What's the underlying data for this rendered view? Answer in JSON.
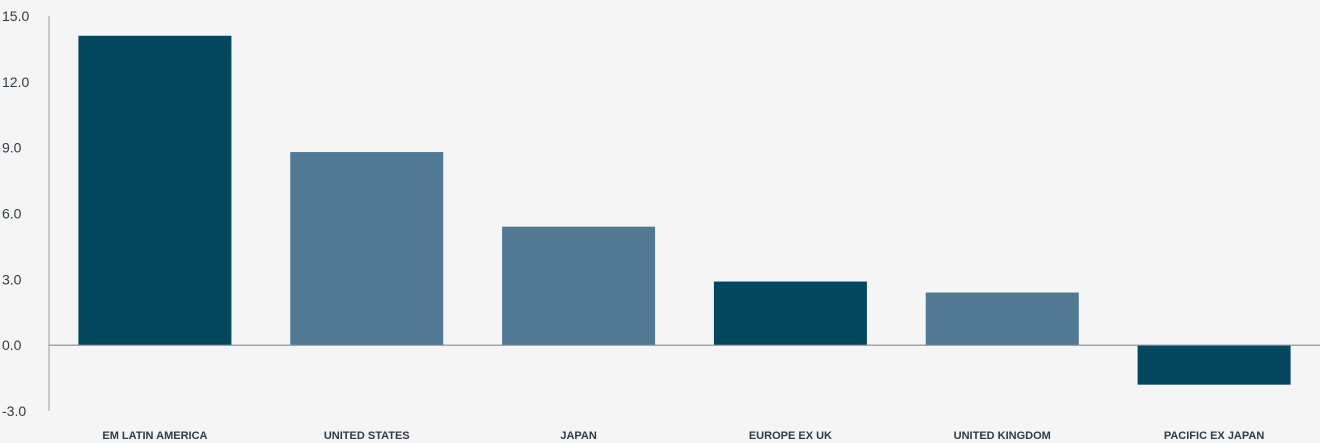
{
  "chart_data": {
    "type": "bar",
    "categories": [
      "EM LATIN AMERICA",
      "UNITED STATES",
      "JAPAN",
      "EUROPE EX UK",
      "UNITED KINGDOM",
      "PACIFIC EX JAPAN"
    ],
    "values": [
      14.1,
      8.8,
      5.4,
      2.9,
      2.4,
      -1.8
    ],
    "yticks": [
      "15.0",
      "12.0",
      "9.0",
      "6.0",
      "3.0",
      "0.0",
      "-3.0"
    ],
    "ylim": [
      -3,
      15
    ],
    "grid": false,
    "colors": {
      "dark": "#02475e",
      "light": "#527994",
      "bar_colors": [
        "#02475e",
        "#527994",
        "#527994",
        "#02475e",
        "#527994",
        "#02475e"
      ],
      "axis": "#999999",
      "background": "#f5f5f5"
    }
  }
}
